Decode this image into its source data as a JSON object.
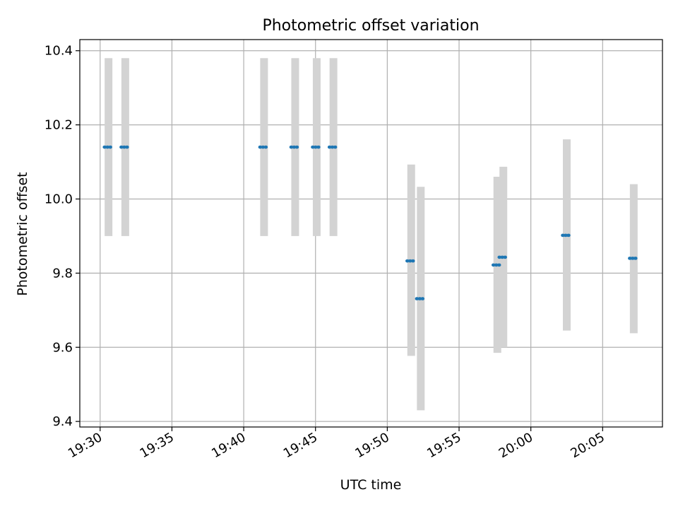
{
  "chart_data": {
    "type": "scatter",
    "title": "Photometric offset variation",
    "xlabel": "UTC time",
    "ylabel": "Photometric offset",
    "xlim": [
      "19:28:35",
      "20:09:10"
    ],
    "ylim": [
      9.385,
      10.43
    ],
    "yticks": [
      9.4,
      9.6,
      9.8,
      10.0,
      10.2,
      10.4
    ],
    "ytick_labels": [
      "9.4",
      "9.6",
      "9.8",
      "10.0",
      "10.2",
      "10.4"
    ],
    "xticks": [
      "19:30",
      "19:35",
      "19:40",
      "19:45",
      "19:50",
      "19:55",
      "20:00",
      "20:05"
    ],
    "grid": true,
    "points": [
      {
        "t": "19:30:35",
        "y": 10.14,
        "lo": 9.9,
        "hi": 10.38
      },
      {
        "t": "19:31:45",
        "y": 10.14,
        "lo": 9.9,
        "hi": 10.38
      },
      {
        "t": "19:41:25",
        "y": 10.14,
        "lo": 9.9,
        "hi": 10.38
      },
      {
        "t": "19:43:35",
        "y": 10.14,
        "lo": 9.9,
        "hi": 10.38
      },
      {
        "t": "19:45:05",
        "y": 10.14,
        "lo": 9.9,
        "hi": 10.38
      },
      {
        "t": "19:46:15",
        "y": 10.14,
        "lo": 9.9,
        "hi": 10.38
      },
      {
        "t": "19:51:40",
        "y": 9.833,
        "lo": 9.577,
        "hi": 10.093
      },
      {
        "t": "19:52:20",
        "y": 9.731,
        "lo": 9.43,
        "hi": 10.033
      },
      {
        "t": "19:57:40",
        "y": 9.822,
        "lo": 9.585,
        "hi": 10.06
      },
      {
        "t": "19:58:05",
        "y": 9.843,
        "lo": 9.6,
        "hi": 10.087
      },
      {
        "t": "20:02:30",
        "y": 9.902,
        "lo": 9.645,
        "hi": 10.161
      },
      {
        "t": "20:07:10",
        "y": 9.84,
        "lo": 9.638,
        "hi": 10.04
      }
    ],
    "colors": {
      "marker": "#1f77b4",
      "errorbar": "#d3d3d3",
      "grid": "#b0b0b0",
      "axes": "#000000"
    }
  }
}
